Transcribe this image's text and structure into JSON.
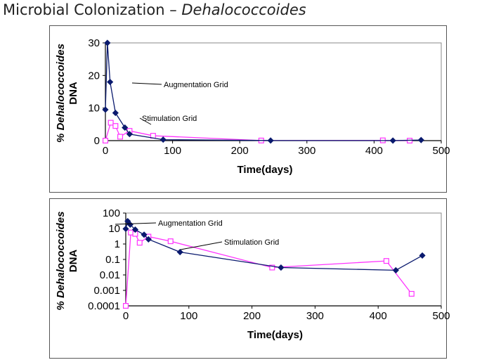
{
  "title": {
    "main": "Microbial Colonization – ",
    "organism": "Dehalococcoides"
  },
  "chart_data": [
    {
      "type": "line",
      "yscale": "linear",
      "ylabel_italic": "% Dehalococcoides",
      "ylabel_line2": "DNA",
      "xlabel": "Time(days)",
      "xlim": [
        0,
        500
      ],
      "ylim": [
        0,
        30
      ],
      "xticks": [
        "0",
        "100",
        "200",
        "300",
        "400",
        "500"
      ],
      "yticks": [
        "0",
        "10",
        "20",
        "30"
      ],
      "xtick_values": [
        0,
        100,
        200,
        300,
        400,
        500
      ],
      "ytick_values": [
        0,
        10,
        20,
        30
      ],
      "grid": false,
      "series": [
        {
          "name": "Augmentation Grid",
          "color": "#0a1a6e",
          "marker": "diamond",
          "x": [
            0,
            3,
            7,
            15,
            29,
            36,
            86,
            246,
            428,
            470
          ],
          "y": [
            9.5,
            30,
            18,
            8.5,
            4,
            2,
            0.3,
            0.03,
            0.02,
            0.18
          ]
        },
        {
          "name": "Stimulation Grid",
          "color": "#ff33ff",
          "marker": "square",
          "x": [
            0,
            8,
            15,
            22,
            36,
            71,
            232,
            413,
            453
          ],
          "y": [
            0.0001,
            5.5,
            4.5,
            1.2,
            3,
            1.5,
            0.03,
            0.08,
            0.0006
          ]
        }
      ],
      "annotations": [
        {
          "text": "Augmentation Grid",
          "series": 0
        },
        {
          "text": "Stimulation Grid",
          "series": 1
        }
      ]
    },
    {
      "type": "line",
      "yscale": "log",
      "ylabel_italic": "% Dehalococcoides",
      "ylabel_line2": "DNA",
      "xlabel": "Time(days)",
      "xlim": [
        0,
        500
      ],
      "ylim": [
        0.0001,
        100
      ],
      "xticks": [
        "0",
        "100",
        "200",
        "300",
        "400",
        "500"
      ],
      "yticks": [
        "0.0001",
        "0.001",
        "0.01",
        "0.1",
        "1",
        "10",
        "100"
      ],
      "xtick_values": [
        0,
        100,
        200,
        300,
        400,
        500
      ],
      "ytick_values": [
        0.0001,
        0.001,
        0.01,
        0.1,
        1,
        10,
        100
      ],
      "grid": false,
      "series": [
        {
          "name": "Augmentation Grid",
          "color": "#0a1a6e",
          "marker": "diamond",
          "x": [
            0,
            3,
            7,
            15,
            29,
            36,
            86,
            246,
            428,
            470
          ],
          "y": [
            9.5,
            30,
            18,
            8.5,
            4,
            2,
            0.3,
            0.03,
            0.02,
            0.18
          ]
        },
        {
          "name": "Stimulation Grid",
          "color": "#ff33ff",
          "marker": "square",
          "x": [
            0,
            8,
            15,
            22,
            36,
            71,
            232,
            413,
            453
          ],
          "y": [
            0.0001,
            5.5,
            4.5,
            1.2,
            3,
            1.5,
            0.03,
            0.08,
            0.0006
          ]
        }
      ],
      "annotations": [
        {
          "text": "Augmentation Grid",
          "series": 0
        },
        {
          "text": "Stimulation Grid",
          "series": 1
        }
      ]
    }
  ]
}
